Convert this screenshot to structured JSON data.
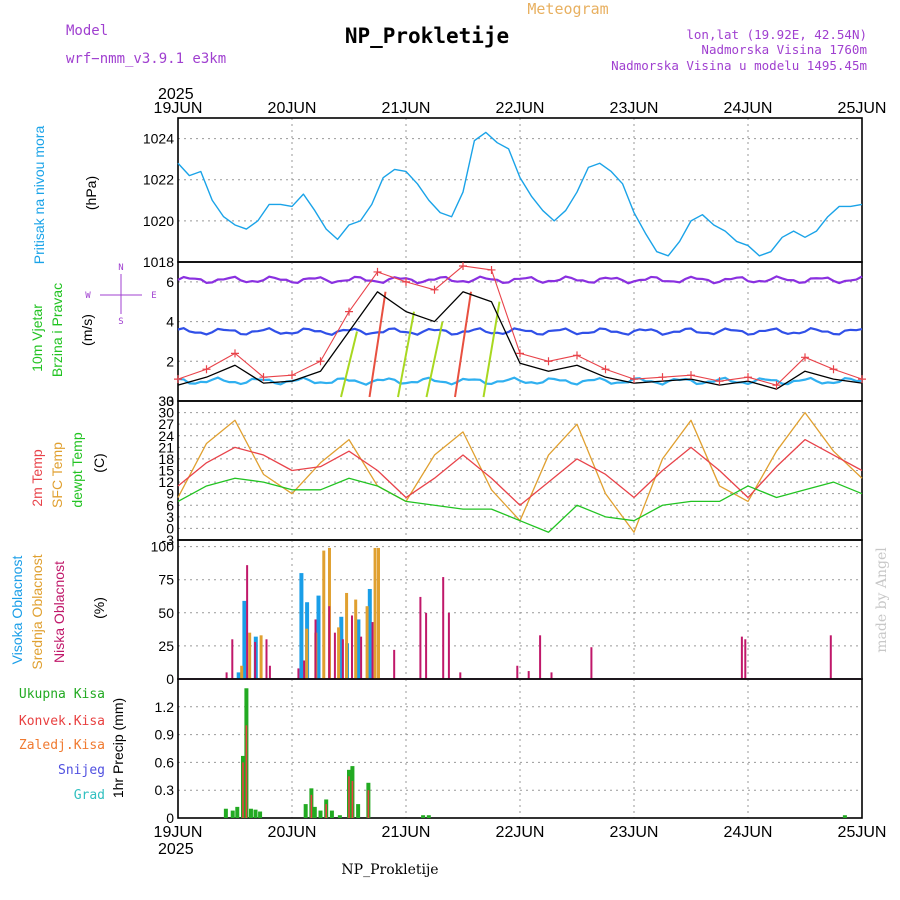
{
  "header": {
    "model_label": "Model",
    "model_name": "wrf−nmm_v3.9.1  e3km",
    "title": "NP_Prokletije",
    "meteogram_label": "Meteogram",
    "coords": "lon,lat (19.92E, 42.54N)",
    "elevation": "Nadmorska Visina 1760m",
    "model_elevation": "Nadmorska Visina u modelu 1495.45m"
  },
  "colors": {
    "pressure": "#1aa3e8",
    "wind_label": "#22c322",
    "temp2m": "#e8434a",
    "sfc": "#e0a030",
    "dewpt": "#22c322",
    "high_cloud": "#1a9ee8",
    "mid_cloud": "#e0a030",
    "low_cloud": "#c0186a",
    "total_precip": "#22aa22",
    "conv_precip": "#e84040",
    "frozen": "#f07a30",
    "snow": "#5050e0",
    "hail": "#30c0c0",
    "purple": "#a040d0",
    "grid": "#999999"
  },
  "footer": {
    "station": "NP_Prokletije",
    "credit": "made by Angel"
  },
  "time_axis": {
    "year": "2025",
    "labels": [
      "19JUN",
      "20JUN",
      "21JUN",
      "22JUN",
      "23JUN",
      "24JUN",
      "25JUN"
    ]
  },
  "chart_data": [
    {
      "type": "line",
      "id": "pressure",
      "title": "Pritisak na nivou mora",
      "ylabel": "(hPa)",
      "ylim": [
        1018,
        1025
      ],
      "yticks": [
        1018,
        1020,
        1022,
        1024
      ],
      "x": [
        0,
        0.1,
        0.2,
        0.3,
        0.4,
        0.5,
        0.6,
        0.7,
        0.8,
        0.9,
        1.0,
        1.1,
        1.2,
        1.3,
        1.4,
        1.5,
        1.6,
        1.7,
        1.8,
        1.9,
        2.0,
        2.1,
        2.2,
        2.3,
        2.4,
        2.5,
        2.6,
        2.7,
        2.8,
        2.9,
        3.0,
        3.1,
        3.2,
        3.3,
        3.4,
        3.5,
        3.6,
        3.7,
        3.8,
        3.9,
        4.0,
        4.1,
        4.2,
        4.3,
        4.4,
        4.5,
        4.6,
        4.7,
        4.8,
        4.9,
        5.0,
        5.1,
        5.2,
        5.3,
        5.4,
        5.5,
        5.6,
        5.7,
        5.8,
        5.9,
        6.0
      ],
      "series": [
        {
          "name": "Pressure",
          "values": [
            1022.8,
            1022.2,
            1022.4,
            1021.0,
            1020.2,
            1019.8,
            1019.6,
            1020.0,
            1020.8,
            1020.8,
            1020.7,
            1021.3,
            1020.5,
            1019.6,
            1019.1,
            1019.8,
            1020.0,
            1020.8,
            1022.1,
            1022.5,
            1022.4,
            1021.8,
            1021.0,
            1020.4,
            1020.2,
            1021.4,
            1023.9,
            1024.3,
            1023.8,
            1023.5,
            1022.1,
            1021.2,
            1020.5,
            1020.0,
            1020.5,
            1021.4,
            1022.6,
            1022.8,
            1022.4,
            1021.8,
            1020.4,
            1019.4,
            1018.5,
            1018.3,
            1019.0,
            1020.0,
            1020.3,
            1019.8,
            1019.5,
            1019.0,
            1018.8,
            1018.3,
            1018.5,
            1019.2,
            1019.5,
            1019.2,
            1019.5,
            1020.2,
            1020.7,
            1020.7,
            1020.8
          ]
        }
      ]
    },
    {
      "type": "line",
      "id": "wind",
      "title": "10m Vjetar",
      "title2": "Brzina i Pravac",
      "ylabel": "(m/s)",
      "ylim": [
        0,
        7
      ],
      "yticks": [
        0,
        2,
        4,
        6
      ],
      "compass": [
        "N",
        "W",
        "E",
        "S"
      ],
      "x": [
        0,
        0.25,
        0.5,
        0.75,
        1.0,
        1.25,
        1.5,
        1.75,
        2.0,
        2.25,
        2.5,
        2.75,
        3.0,
        3.25,
        3.5,
        3.75,
        4.0,
        4.25,
        4.5,
        4.75,
        5.0,
        5.25,
        5.5,
        5.75,
        6.0
      ],
      "series": [
        {
          "name": "Wind speed",
          "values": [
            0.8,
            1.2,
            1.8,
            0.9,
            1.0,
            1.5,
            3.5,
            5.5,
            4.5,
            4.0,
            5.5,
            5.0,
            1.9,
            1.5,
            1.8,
            1.2,
            0.9,
            1.0,
            1.1,
            0.8,
            1.0,
            0.6,
            1.5,
            1.1,
            0.9
          ]
        },
        {
          "name": "Gusts",
          "values": [
            1.1,
            1.6,
            2.4,
            1.2,
            1.3,
            2.0,
            4.5,
            6.5,
            6.0,
            5.6,
            6.8,
            6.6,
            2.4,
            2.0,
            2.3,
            1.6,
            1.1,
            1.2,
            1.3,
            1.0,
            1.2,
            0.8,
            2.2,
            1.6,
            1.1
          ]
        }
      ]
    },
    {
      "type": "line",
      "id": "temperature",
      "title": "2m Temp",
      "title2": "SFC Temp",
      "title3": "dewpt Temp",
      "ylabel": "(C)",
      "ylim": [
        -3,
        33
      ],
      "yticks": [
        -3,
        0,
        3,
        6,
        9,
        12,
        15,
        18,
        21,
        24,
        27,
        30,
        33
      ],
      "x": [
        0,
        0.25,
        0.5,
        0.75,
        1.0,
        1.25,
        1.5,
        1.75,
        2.0,
        2.25,
        2.5,
        2.75,
        3.0,
        3.25,
        3.5,
        3.75,
        4.0,
        4.25,
        4.5,
        4.75,
        5.0,
        5.25,
        5.5,
        5.75,
        6.0
      ],
      "series": [
        {
          "name": "2m Temp",
          "values": [
            11,
            17,
            21,
            19,
            15,
            16,
            20,
            15,
            8,
            13,
            19,
            13,
            6,
            12,
            18,
            14,
            8,
            15,
            21,
            15,
            8,
            16,
            23,
            19,
            15
          ]
        },
        {
          "name": "SFC Temp",
          "values": [
            8,
            22,
            28,
            14,
            9,
            17,
            23,
            11,
            7,
            19,
            25,
            10,
            2,
            19,
            27,
            9,
            -1,
            18,
            28,
            11,
            7,
            20,
            30,
            20,
            13
          ]
        },
        {
          "name": "Dewpt",
          "values": [
            7,
            11,
            13,
            12,
            10,
            10,
            13,
            11,
            7,
            6,
            5,
            5,
            2,
            -1,
            6,
            3,
            2,
            6,
            7,
            7,
            11,
            8,
            10,
            12,
            9
          ]
        }
      ]
    },
    {
      "type": "bar",
      "id": "clouds",
      "title": "Visoka Oblacnost",
      "title2": "Srednja Oblacnost",
      "title3": "Niska Oblacnost",
      "ylabel": "(%)",
      "ylim": [
        0,
        105
      ],
      "yticks": [
        0,
        25,
        50,
        75,
        100
      ],
      "series": [
        {
          "name": "Visoka",
          "points": [
            [
              0.55,
              5
            ],
            [
              0.6,
              59
            ],
            [
              0.7,
              32
            ],
            [
              1.1,
              80
            ],
            [
              1.15,
              58
            ],
            [
              1.25,
              63
            ],
            [
              1.45,
              47
            ],
            [
              1.5,
              27
            ],
            [
              1.6,
              45
            ],
            [
              1.7,
              68
            ]
          ]
        },
        {
          "name": "Srednja",
          "points": [
            [
              0.55,
              10
            ],
            [
              0.62,
              35
            ],
            [
              0.72,
              33
            ],
            [
              1.12,
              38
            ],
            [
              1.2,
              35
            ],
            [
              1.27,
              97
            ],
            [
              1.32,
              99
            ],
            [
              1.4,
              39
            ],
            [
              1.47,
              65
            ],
            [
              1.55,
              60
            ],
            [
              1.65,
              55
            ],
            [
              1.72,
              99
            ],
            [
              1.75,
              99
            ]
          ]
        },
        {
          "name": "Niska",
          "points": [
            [
              0.4,
              5
            ],
            [
              0.45,
              30
            ],
            [
              0.58,
              86
            ],
            [
              0.65,
              28
            ],
            [
              0.75,
              30
            ],
            [
              0.78,
              10
            ],
            [
              1.03,
              8
            ],
            [
              1.08,
              14
            ],
            [
              1.18,
              45
            ],
            [
              1.3,
              55
            ],
            [
              1.35,
              35
            ],
            [
              1.42,
              30
            ],
            [
              1.5,
              48
            ],
            [
              1.58,
              32
            ],
            [
              1.68,
              43
            ],
            [
              1.87,
              22
            ],
            [
              2.1,
              62
            ],
            [
              2.15,
              50
            ],
            [
              2.3,
              77
            ],
            [
              2.35,
              50
            ],
            [
              2.45,
              5
            ],
            [
              2.95,
              10
            ],
            [
              3.05,
              6
            ],
            [
              3.15,
              33
            ],
            [
              3.25,
              5
            ],
            [
              3.6,
              24
            ],
            [
              4.92,
              32
            ],
            [
              4.95,
              30
            ],
            [
              5.7,
              33
            ]
          ]
        }
      ]
    },
    {
      "type": "bar",
      "id": "precip",
      "title": "1hr Precip (mm)",
      "legend": [
        "Ukupna Kisa",
        "Konvek.Kisa",
        "Zaledj.Kisa",
        "Snijeg",
        "Grad"
      ],
      "ylim": [
        0,
        1.5
      ],
      "yticks": [
        0,
        0.3,
        0.6,
        0.9,
        1.2
      ],
      "series": [
        {
          "name": "Ukupna Kisa",
          "points": [
            [
              0.42,
              0.1
            ],
            [
              0.48,
              0.08
            ],
            [
              0.52,
              0.12
            ],
            [
              0.57,
              0.67
            ],
            [
              0.6,
              1.4
            ],
            [
              0.64,
              0.1
            ],
            [
              0.68,
              0.09
            ],
            [
              0.72,
              0.07
            ],
            [
              1.12,
              0.15
            ],
            [
              1.17,
              0.32
            ],
            [
              1.2,
              0.12
            ],
            [
              1.25,
              0.08
            ],
            [
              1.3,
              0.2
            ],
            [
              1.35,
              0.08
            ],
            [
              1.42,
              0.03
            ],
            [
              1.5,
              0.52
            ],
            [
              1.53,
              0.56
            ],
            [
              1.58,
              0.15
            ],
            [
              1.67,
              0.38
            ],
            [
              2.15,
              0.03
            ],
            [
              2.2,
              0.03
            ],
            [
              5.85,
              0.03
            ]
          ]
        },
        {
          "name": "Konvek.Kisa",
          "points": [
            [
              0.57,
              0.6
            ],
            [
              0.6,
              1.0
            ],
            [
              1.17,
              0.25
            ],
            [
              1.3,
              0.15
            ],
            [
              1.5,
              0.45
            ],
            [
              1.53,
              0.4
            ],
            [
              1.67,
              0.3
            ]
          ]
        }
      ]
    }
  ]
}
